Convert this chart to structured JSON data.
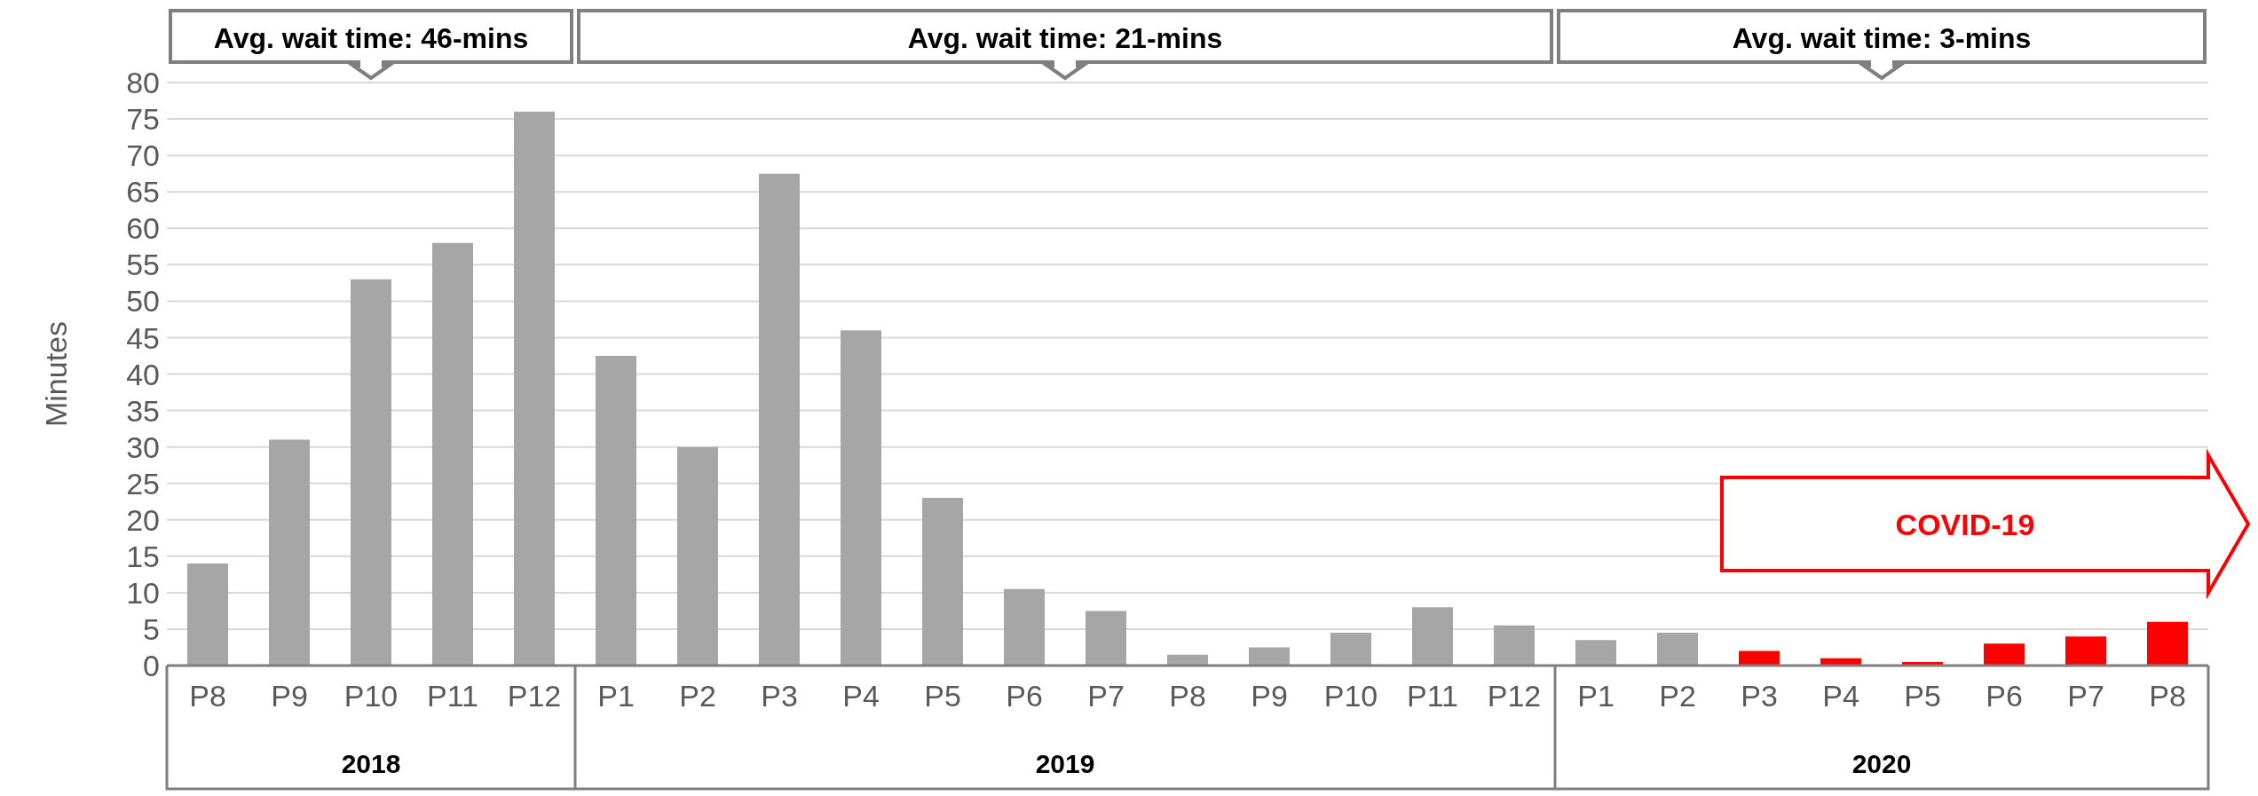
{
  "chart_data": {
    "type": "bar",
    "ylabel": "Minutes",
    "categories": [
      "P8",
      "P9",
      "P10",
      "P11",
      "P12",
      "P1",
      "P2",
      "P3",
      "P4",
      "P5",
      "P6",
      "P7",
      "P8",
      "P9",
      "P10",
      "P11",
      "P12",
      "P1",
      "P2",
      "P3",
      "P4",
      "P5",
      "P6",
      "P7",
      "P8"
    ],
    "values": [
      14,
      31,
      53,
      58,
      76,
      42.5,
      30,
      67.5,
      46,
      23,
      10.5,
      7.5,
      1.5,
      2.5,
      4.5,
      8,
      5.5,
      3.5,
      4.5,
      2,
      1,
      0.5,
      3,
      4,
      6
    ],
    "colors": [
      "#a6a6a6",
      "#a6a6a6",
      "#a6a6a6",
      "#a6a6a6",
      "#a6a6a6",
      "#a6a6a6",
      "#a6a6a6",
      "#a6a6a6",
      "#a6a6a6",
      "#a6a6a6",
      "#a6a6a6",
      "#a6a6a6",
      "#a6a6a6",
      "#a6a6a6",
      "#a6a6a6",
      "#a6a6a6",
      "#a6a6a6",
      "#a6a6a6",
      "#a6a6a6",
      "#ff0000",
      "#ff0000",
      "#ff0000",
      "#ff0000",
      "#ff0000",
      "#ff0000"
    ],
    "ylim": [
      0,
      80
    ],
    "yticks": [
      0,
      5,
      10,
      15,
      20,
      25,
      30,
      35,
      40,
      45,
      50,
      55,
      60,
      65,
      70,
      75,
      80
    ],
    "grid": "y",
    "legend": false,
    "annotations": [
      "Avg. wait time: 46-mins",
      "Avg. wait time: 21-mins",
      "Avg. wait time: 3-mins",
      "COVID-19",
      "2018",
      "2019",
      "2020"
    ]
  }
}
